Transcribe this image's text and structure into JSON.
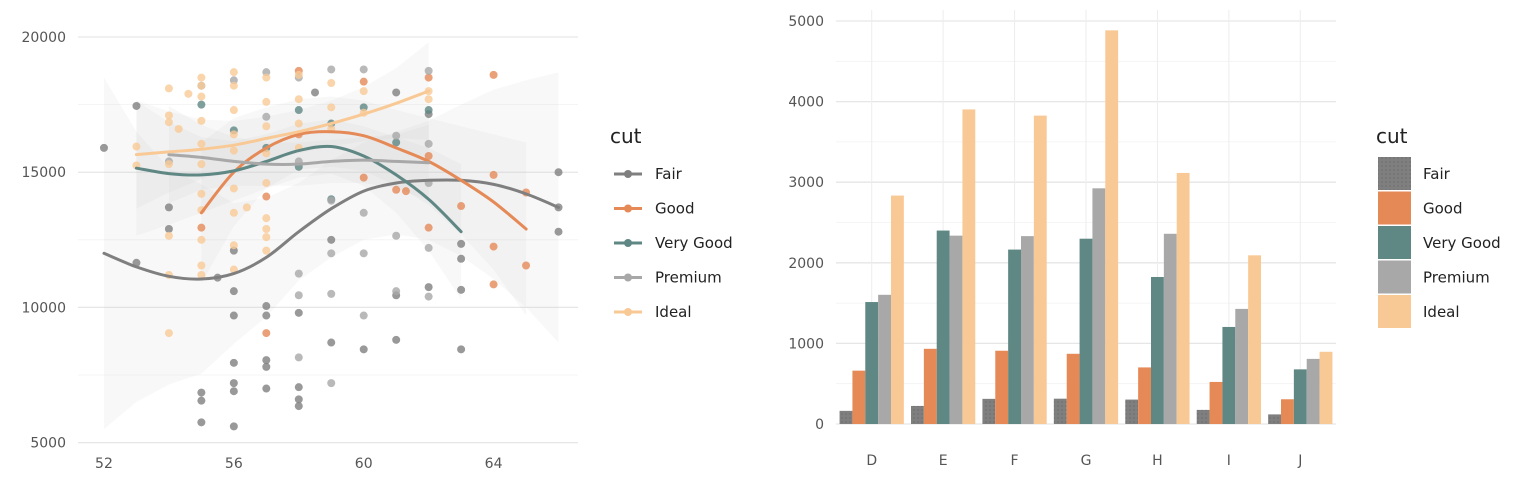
{
  "colors": {
    "Fair": "#7f7f7f",
    "Good": "#e58a57",
    "Very Good": "#5f8784",
    "Premium": "#a8a8a8",
    "Ideal": "#f9c995"
  },
  "chart_data": [
    {
      "type": "scatter",
      "xlim": [
        51.2,
        66.6
      ],
      "ylim": [
        4800,
        21000
      ],
      "xticks": [
        "52",
        "56",
        "60",
        "64"
      ],
      "xtick_values": [
        52,
        56,
        60,
        64
      ],
      "yticks": [
        "5000",
        "10000",
        "15000",
        "20000"
      ],
      "ytick_values": [
        5000,
        10000,
        15000,
        20000
      ],
      "grid": true,
      "legend": {
        "title": "cut",
        "entries": [
          "Fair",
          "Good",
          "Very Good",
          "Premium",
          "Ideal"
        ],
        "placement": "right"
      },
      "smooth_series": [
        {
          "name": "Fair",
          "x": [
            52,
            53,
            54,
            55,
            56,
            57,
            58,
            59,
            60,
            61,
            62,
            63,
            64,
            65,
            66
          ],
          "y": [
            12000,
            11500,
            11150,
            11050,
            11250,
            11850,
            12800,
            13650,
            14300,
            14600,
            14700,
            14700,
            14550,
            14200,
            13700
          ],
          "band": [
            6500,
            5000,
            4000,
            3500,
            2600,
            2200,
            1800,
            1800,
            1800,
            1900,
            2200,
            2800,
            3500,
            4200,
            5000
          ]
        },
        {
          "name": "Good",
          "x": [
            55,
            56,
            57,
            58,
            59,
            60,
            61,
            62,
            63,
            64,
            65
          ],
          "y": [
            13500,
            15000,
            15900,
            16400,
            16500,
            16350,
            15900,
            15400,
            14700,
            13900,
            12900
          ],
          "band": [
            2600,
            2000,
            1500,
            1300,
            1300,
            1300,
            1400,
            1600,
            2000,
            2500,
            3200
          ]
        },
        {
          "name": "Very Good",
          "x": [
            53,
            54,
            55,
            56,
            57,
            58,
            59,
            60,
            61,
            62,
            63
          ],
          "y": [
            15150,
            14950,
            14900,
            15050,
            15400,
            15800,
            15950,
            15600,
            14900,
            14000,
            12800
          ],
          "band": [
            2500,
            1900,
            1400,
            1100,
            1000,
            1000,
            1000,
            1100,
            1400,
            1900,
            2500
          ]
        },
        {
          "name": "Premium",
          "x": [
            54,
            55,
            56,
            57,
            58,
            59,
            60,
            61,
            62
          ],
          "y": [
            15650,
            15550,
            15400,
            15300,
            15300,
            15400,
            15450,
            15400,
            15350
          ],
          "band": [
            1800,
            1200,
            900,
            800,
            800,
            800,
            850,
            1000,
            1400
          ]
        },
        {
          "name": "Ideal",
          "x": [
            53,
            54,
            55,
            56,
            57,
            58,
            59,
            60,
            61,
            62
          ],
          "y": [
            15650,
            15750,
            15850,
            16000,
            16250,
            16500,
            16800,
            17150,
            17550,
            18000
          ],
          "band": [
            2000,
            1500,
            1100,
            900,
            800,
            800,
            850,
            1000,
            1300,
            1800
          ]
        }
      ],
      "points": [
        {
          "cut": "Fair",
          "x": 52,
          "y": 15900
        },
        {
          "cut": "Fair",
          "x": 53,
          "y": 17450
        },
        {
          "cut": "Fair",
          "x": 53,
          "y": 11650
        },
        {
          "cut": "Fair",
          "x": 54,
          "y": 12900
        },
        {
          "cut": "Fair",
          "x": 54,
          "y": 13700
        },
        {
          "cut": "Fair",
          "x": 55,
          "y": 6850
        },
        {
          "cut": "Fair",
          "x": 55,
          "y": 6550
        },
        {
          "cut": "Fair",
          "x": 55,
          "y": 5750
        },
        {
          "cut": "Fair",
          "x": 55.5,
          "y": 11100
        },
        {
          "cut": "Fair",
          "x": 56,
          "y": 12100
        },
        {
          "cut": "Fair",
          "x": 56,
          "y": 10600
        },
        {
          "cut": "Fair",
          "x": 56,
          "y": 9700
        },
        {
          "cut": "Fair",
          "x": 56,
          "y": 7950
        },
        {
          "cut": "Fair",
          "x": 56,
          "y": 7200
        },
        {
          "cut": "Fair",
          "x": 56,
          "y": 6900
        },
        {
          "cut": "Fair",
          "x": 56,
          "y": 5600
        },
        {
          "cut": "Fair",
          "x": 57,
          "y": 10050
        },
        {
          "cut": "Fair",
          "x": 57,
          "y": 9700
        },
        {
          "cut": "Fair",
          "x": 57,
          "y": 8050
        },
        {
          "cut": "Fair",
          "x": 57,
          "y": 7800
        },
        {
          "cut": "Fair",
          "x": 57,
          "y": 7000
        },
        {
          "cut": "Fair",
          "x": 58,
          "y": 9800
        },
        {
          "cut": "Fair",
          "x": 58,
          "y": 7050
        },
        {
          "cut": "Fair",
          "x": 58,
          "y": 6600
        },
        {
          "cut": "Fair",
          "x": 58,
          "y": 6350
        },
        {
          "cut": "Fair",
          "x": 58.5,
          "y": 17950
        },
        {
          "cut": "Fair",
          "x": 59,
          "y": 12500
        },
        {
          "cut": "Fair",
          "x": 59,
          "y": 8700
        },
        {
          "cut": "Fair",
          "x": 60,
          "y": 8450
        },
        {
          "cut": "Fair",
          "x": 61,
          "y": 17950
        },
        {
          "cut": "Fair",
          "x": 61,
          "y": 10450
        },
        {
          "cut": "Fair",
          "x": 61,
          "y": 8800
        },
        {
          "cut": "Fair",
          "x": 62,
          "y": 17150
        },
        {
          "cut": "Fair",
          "x": 62,
          "y": 10750
        },
        {
          "cut": "Fair",
          "x": 63,
          "y": 12350
        },
        {
          "cut": "Fair",
          "x": 63,
          "y": 11800
        },
        {
          "cut": "Fair",
          "x": 63,
          "y": 10650
        },
        {
          "cut": "Fair",
          "x": 63,
          "y": 8450
        },
        {
          "cut": "Fair",
          "x": 66,
          "y": 15000
        },
        {
          "cut": "Fair",
          "x": 66,
          "y": 13700
        },
        {
          "cut": "Fair",
          "x": 66,
          "y": 12800
        },
        {
          "cut": "Good",
          "x": 55,
          "y": 12950
        },
        {
          "cut": "Good",
          "x": 57,
          "y": 9050
        },
        {
          "cut": "Good",
          "x": 57,
          "y": 14100
        },
        {
          "cut": "Good",
          "x": 58,
          "y": 18750
        },
        {
          "cut": "Good",
          "x": 58,
          "y": 16400
        },
        {
          "cut": "Good",
          "x": 60,
          "y": 18350
        },
        {
          "cut": "Good",
          "x": 60,
          "y": 14800
        },
        {
          "cut": "Good",
          "x": 61,
          "y": 14350
        },
        {
          "cut": "Good",
          "x": 61.3,
          "y": 14300
        },
        {
          "cut": "Good",
          "x": 62,
          "y": 18500
        },
        {
          "cut": "Good",
          "x": 62,
          "y": 15600
        },
        {
          "cut": "Good",
          "x": 62,
          "y": 12950
        },
        {
          "cut": "Good",
          "x": 63,
          "y": 13750
        },
        {
          "cut": "Good",
          "x": 64,
          "y": 18600
        },
        {
          "cut": "Good",
          "x": 64,
          "y": 14900
        },
        {
          "cut": "Good",
          "x": 64,
          "y": 12250
        },
        {
          "cut": "Good",
          "x": 64,
          "y": 10850
        },
        {
          "cut": "Good",
          "x": 65,
          "y": 14250
        },
        {
          "cut": "Good",
          "x": 65,
          "y": 11550
        },
        {
          "cut": "Very Good",
          "x": 55,
          "y": 17500
        },
        {
          "cut": "Very Good",
          "x": 56,
          "y": 16550
        },
        {
          "cut": "Very Good",
          "x": 57,
          "y": 15900
        },
        {
          "cut": "Very Good",
          "x": 58,
          "y": 17300
        },
        {
          "cut": "Very Good",
          "x": 58,
          "y": 15200
        },
        {
          "cut": "Very Good",
          "x": 59,
          "y": 14000
        },
        {
          "cut": "Very Good",
          "x": 59,
          "y": 16800
        },
        {
          "cut": "Very Good",
          "x": 60,
          "y": 17400
        },
        {
          "cut": "Very Good",
          "x": 61,
          "y": 16100
        },
        {
          "cut": "Very Good",
          "x": 62,
          "y": 17300
        },
        {
          "cut": "Premium",
          "x": 54,
          "y": 15400
        },
        {
          "cut": "Premium",
          "x": 55,
          "y": 18200
        },
        {
          "cut": "Premium",
          "x": 56,
          "y": 18400
        },
        {
          "cut": "Premium",
          "x": 57,
          "y": 18700
        },
        {
          "cut": "Premium",
          "x": 57,
          "y": 17050
        },
        {
          "cut": "Premium",
          "x": 58,
          "y": 18500
        },
        {
          "cut": "Premium",
          "x": 58,
          "y": 15400
        },
        {
          "cut": "Premium",
          "x": 58,
          "y": 11250
        },
        {
          "cut": "Premium",
          "x": 58,
          "y": 10450
        },
        {
          "cut": "Premium",
          "x": 58,
          "y": 8150
        },
        {
          "cut": "Premium",
          "x": 59,
          "y": 18800
        },
        {
          "cut": "Premium",
          "x": 59,
          "y": 13950
        },
        {
          "cut": "Premium",
          "x": 59,
          "y": 12000
        },
        {
          "cut": "Premium",
          "x": 59,
          "y": 10500
        },
        {
          "cut": "Premium",
          "x": 59,
          "y": 7200
        },
        {
          "cut": "Premium",
          "x": 60,
          "y": 18800
        },
        {
          "cut": "Premium",
          "x": 60,
          "y": 13500
        },
        {
          "cut": "Premium",
          "x": 60,
          "y": 12000
        },
        {
          "cut": "Premium",
          "x": 60,
          "y": 9700
        },
        {
          "cut": "Premium",
          "x": 61,
          "y": 16350
        },
        {
          "cut": "Premium",
          "x": 61,
          "y": 12650
        },
        {
          "cut": "Premium",
          "x": 61,
          "y": 10600
        },
        {
          "cut": "Premium",
          "x": 62,
          "y": 18750
        },
        {
          "cut": "Premium",
          "x": 62,
          "y": 16050
        },
        {
          "cut": "Premium",
          "x": 62,
          "y": 14600
        },
        {
          "cut": "Premium",
          "x": 62,
          "y": 12200
        },
        {
          "cut": "Premium",
          "x": 62,
          "y": 10400
        },
        {
          "cut": "Ideal",
          "x": 53,
          "y": 15950
        },
        {
          "cut": "Ideal",
          "x": 53,
          "y": 15250
        },
        {
          "cut": "Ideal",
          "x": 54,
          "y": 18100
        },
        {
          "cut": "Ideal",
          "x": 54,
          "y": 17100
        },
        {
          "cut": "Ideal",
          "x": 54,
          "y": 16850
        },
        {
          "cut": "Ideal",
          "x": 54,
          "y": 15300
        },
        {
          "cut": "Ideal",
          "x": 54,
          "y": 12650
        },
        {
          "cut": "Ideal",
          "x": 54,
          "y": 11200
        },
        {
          "cut": "Ideal",
          "x": 54,
          "y": 9050
        },
        {
          "cut": "Ideal",
          "x": 54.3,
          "y": 16600
        },
        {
          "cut": "Ideal",
          "x": 54.6,
          "y": 17900
        },
        {
          "cut": "Ideal",
          "x": 55,
          "y": 18500
        },
        {
          "cut": "Ideal",
          "x": 55,
          "y": 18200
        },
        {
          "cut": "Ideal",
          "x": 55,
          "y": 17800
        },
        {
          "cut": "Ideal",
          "x": 55,
          "y": 16900
        },
        {
          "cut": "Ideal",
          "x": 55,
          "y": 16050
        },
        {
          "cut": "Ideal",
          "x": 55,
          "y": 15300
        },
        {
          "cut": "Ideal",
          "x": 55,
          "y": 14200
        },
        {
          "cut": "Ideal",
          "x": 55,
          "y": 13600
        },
        {
          "cut": "Ideal",
          "x": 55,
          "y": 12500
        },
        {
          "cut": "Ideal",
          "x": 55,
          "y": 11550
        },
        {
          "cut": "Ideal",
          "x": 55,
          "y": 11200
        },
        {
          "cut": "Ideal",
          "x": 56,
          "y": 18700
        },
        {
          "cut": "Ideal",
          "x": 56,
          "y": 18200
        },
        {
          "cut": "Ideal",
          "x": 56,
          "y": 17300
        },
        {
          "cut": "Ideal",
          "x": 56,
          "y": 16400
        },
        {
          "cut": "Ideal",
          "x": 56,
          "y": 15800
        },
        {
          "cut": "Ideal",
          "x": 56,
          "y": 14400
        },
        {
          "cut": "Ideal",
          "x": 56,
          "y": 13500
        },
        {
          "cut": "Ideal",
          "x": 56,
          "y": 12300
        },
        {
          "cut": "Ideal",
          "x": 56,
          "y": 11400
        },
        {
          "cut": "Ideal",
          "x": 56.4,
          "y": 13700
        },
        {
          "cut": "Ideal",
          "x": 57,
          "y": 18500
        },
        {
          "cut": "Ideal",
          "x": 57,
          "y": 17600
        },
        {
          "cut": "Ideal",
          "x": 57,
          "y": 16700
        },
        {
          "cut": "Ideal",
          "x": 57,
          "y": 15700
        },
        {
          "cut": "Ideal",
          "x": 57,
          "y": 14600
        },
        {
          "cut": "Ideal",
          "x": 57,
          "y": 13300
        },
        {
          "cut": "Ideal",
          "x": 57,
          "y": 12900
        },
        {
          "cut": "Ideal",
          "x": 57,
          "y": 12600
        },
        {
          "cut": "Ideal",
          "x": 57,
          "y": 12100
        },
        {
          "cut": "Ideal",
          "x": 58,
          "y": 18600
        },
        {
          "cut": "Ideal",
          "x": 58,
          "y": 17700
        },
        {
          "cut": "Ideal",
          "x": 58,
          "y": 16800
        },
        {
          "cut": "Ideal",
          "x": 58,
          "y": 15900
        },
        {
          "cut": "Ideal",
          "x": 59,
          "y": 18300
        },
        {
          "cut": "Ideal",
          "x": 59,
          "y": 17400
        },
        {
          "cut": "Ideal",
          "x": 59,
          "y": 16600
        },
        {
          "cut": "Ideal",
          "x": 60,
          "y": 18000
        },
        {
          "cut": "Ideal",
          "x": 60,
          "y": 17200
        },
        {
          "cut": "Ideal",
          "x": 62,
          "y": 18000
        },
        {
          "cut": "Ideal",
          "x": 62,
          "y": 17700
        }
      ]
    },
    {
      "type": "bar",
      "categories": [
        "D",
        "E",
        "F",
        "G",
        "H",
        "I",
        "J"
      ],
      "ylim": [
        0,
        5000
      ],
      "yticks": [
        "0",
        "1000",
        "2000",
        "3000",
        "4000",
        "5000"
      ],
      "ytick_values": [
        0,
        1000,
        2000,
        3000,
        4000,
        5000
      ],
      "grid": true,
      "legend": {
        "title": "cut",
        "entries": [
          "Fair",
          "Good",
          "Very Good",
          "Premium",
          "Ideal"
        ],
        "placement": "right"
      },
      "series": [
        {
          "name": "Fair",
          "values": [
            163,
            224,
            312,
            314,
            303,
            175,
            119
          ]
        },
        {
          "name": "Good",
          "values": [
            662,
            933,
            909,
            871,
            702,
            522,
            307
          ]
        },
        {
          "name": "Very Good",
          "values": [
            1513,
            2400,
            2164,
            2299,
            1824,
            1204,
            678
          ]
        },
        {
          "name": "Premium",
          "values": [
            1603,
            2337,
            2331,
            2924,
            2360,
            1428,
            808
          ]
        },
        {
          "name": "Ideal",
          "values": [
            2834,
            3903,
            3826,
            4884,
            3115,
            2093,
            896
          ]
        }
      ]
    }
  ]
}
